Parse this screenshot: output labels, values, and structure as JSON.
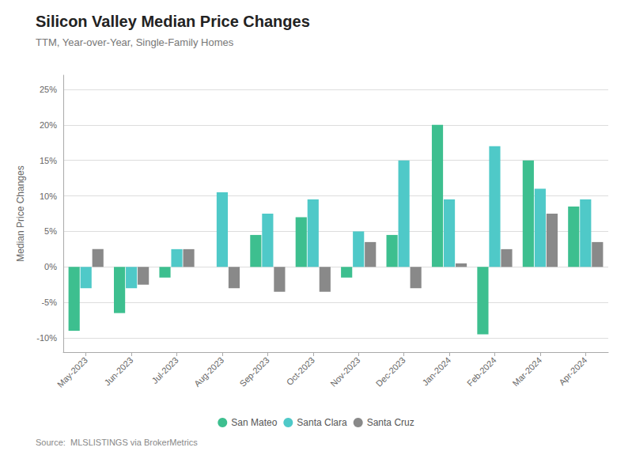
{
  "chart_data": {
    "type": "bar",
    "title": "Silicon Valley Median Price Changes",
    "subtitle": "TTM, Year-over-Year, Single-Family Homes",
    "annotations": [
      "Source:  MLSLISTINGS via BrokerMetrics"
    ],
    "ylabel": "Median Price Changes",
    "categories": [
      "May-2023",
      "Jun-2023",
      "Jul-2023",
      "Aug-2023",
      "Sep-2023",
      "Oct-2023",
      "Nov-2023",
      "Dec-2023",
      "Jan-2024",
      "Feb-2024",
      "Mar-2024",
      "Apr-2024"
    ],
    "series": [
      {
        "name": "San Mateo",
        "color": "#3dbf8f",
        "values": [
          -9.0,
          -6.5,
          -1.5,
          0.0,
          4.5,
          7.0,
          -1.5,
          4.5,
          20.0,
          -9.5,
          15.0,
          8.5
        ]
      },
      {
        "name": "Santa Clara",
        "color": "#4fc9c8",
        "values": [
          -3.0,
          -3.0,
          2.5,
          10.5,
          7.5,
          9.5,
          5.0,
          15.0,
          9.5,
          17.0,
          11.0,
          9.5
        ]
      },
      {
        "name": "Santa Cruz",
        "color": "#898989",
        "values": [
          2.5,
          -2.5,
          2.5,
          -3.0,
          -3.5,
          -3.5,
          3.5,
          -3.0,
          0.5,
          2.5,
          7.5,
          3.5
        ]
      }
    ],
    "ylim": [
      -12,
      27
    ],
    "yticks": [
      {
        "value": -10,
        "label": "-10%"
      },
      {
        "value": -5,
        "label": "-5%"
      },
      {
        "value": 0,
        "label": "0%"
      },
      {
        "value": 5,
        "label": "5%"
      },
      {
        "value": 10,
        "label": "10%"
      },
      {
        "value": 15,
        "label": "15%"
      },
      {
        "value": 20,
        "label": "20%"
      },
      {
        "value": 25,
        "label": "25%"
      }
    ],
    "grid": true,
    "legend": "bottom"
  }
}
